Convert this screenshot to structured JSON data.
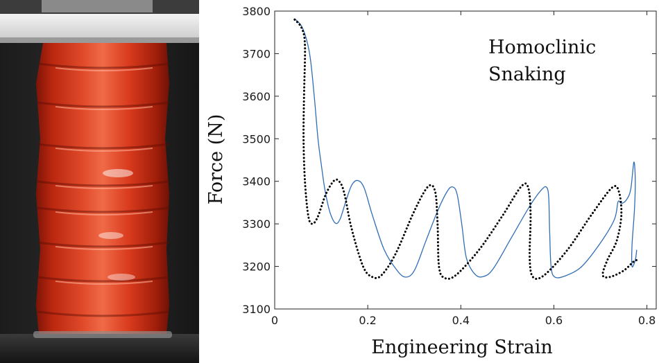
{
  "figure": {
    "photo_alt": "Red cylindrical shell with circumferential folds compressed between white and dark plates"
  },
  "chart_data": {
    "type": "line",
    "title": "",
    "xlabel": "Engineering Strain",
    "ylabel": "Force (N)",
    "xlim": [
      0,
      0.82
    ],
    "ylim": [
      3100,
      3800
    ],
    "xticks": [
      0,
      0.2,
      0.4,
      0.6,
      0.8
    ],
    "xtick_labels": [
      "0",
      "0.2",
      "0.4",
      "0.6",
      "0.8"
    ],
    "yticks": [
      3100,
      3200,
      3300,
      3400,
      3500,
      3600,
      3700,
      3800
    ],
    "ytick_labels": [
      "3100",
      "3200",
      "3300",
      "3400",
      "3500",
      "3600",
      "3700",
      "3800"
    ],
    "grid": false,
    "annotation": [
      "Homoclinic",
      "Snaking"
    ],
    "series": [
      {
        "name": "solid",
        "style": "solid",
        "color": "#2f6db5",
        "points": [
          [
            0.043,
            3782
          ],
          [
            0.06,
            3760
          ],
          [
            0.075,
            3700
          ],
          [
            0.085,
            3600
          ],
          [
            0.093,
            3500
          ],
          [
            0.1,
            3440
          ],
          [
            0.108,
            3380
          ],
          [
            0.118,
            3330
          ],
          [
            0.13,
            3302
          ],
          [
            0.14,
            3310
          ],
          [
            0.152,
            3350
          ],
          [
            0.165,
            3390
          ],
          [
            0.178,
            3402
          ],
          [
            0.192,
            3385
          ],
          [
            0.21,
            3320
          ],
          [
            0.235,
            3240
          ],
          [
            0.26,
            3195
          ],
          [
            0.28,
            3175
          ],
          [
            0.3,
            3190
          ],
          [
            0.325,
            3260
          ],
          [
            0.35,
            3330
          ],
          [
            0.37,
            3375
          ],
          [
            0.382,
            3387
          ],
          [
            0.392,
            3370
          ],
          [
            0.402,
            3300
          ],
          [
            0.412,
            3220
          ],
          [
            0.43,
            3182
          ],
          [
            0.448,
            3176
          ],
          [
            0.47,
            3195
          ],
          [
            0.51,
            3270
          ],
          [
            0.55,
            3345
          ],
          [
            0.575,
            3382
          ],
          [
            0.585,
            3385
          ],
          [
            0.589,
            3360
          ],
          [
            0.591,
            3280
          ],
          [
            0.594,
            3200
          ],
          [
            0.602,
            3175
          ],
          [
            0.625,
            3178
          ],
          [
            0.66,
            3200
          ],
          [
            0.7,
            3255
          ],
          [
            0.73,
            3310
          ],
          [
            0.738,
            3352
          ],
          [
            0.745,
            3348
          ],
          [
            0.755,
            3355
          ],
          [
            0.765,
            3380
          ],
          [
            0.772,
            3445
          ],
          [
            0.775,
            3400
          ],
          [
            0.773,
            3330
          ],
          [
            0.768,
            3250
          ],
          [
            0.768,
            3200
          ],
          [
            0.775,
            3215
          ],
          [
            0.778,
            3238
          ]
        ]
      },
      {
        "name": "dotted",
        "style": "dotted",
        "color": "#000000",
        "points": [
          [
            0.043,
            3780
          ],
          [
            0.058,
            3760
          ],
          [
            0.065,
            3720
          ],
          [
            0.063,
            3600
          ],
          [
            0.062,
            3500
          ],
          [
            0.065,
            3400
          ],
          [
            0.072,
            3320
          ],
          [
            0.08,
            3300
          ],
          [
            0.092,
            3315
          ],
          [
            0.11,
            3370
          ],
          [
            0.128,
            3402
          ],
          [
            0.14,
            3398
          ],
          [
            0.15,
            3370
          ],
          [
            0.165,
            3290
          ],
          [
            0.19,
            3200
          ],
          [
            0.21,
            3175
          ],
          [
            0.23,
            3180
          ],
          [
            0.26,
            3230
          ],
          [
            0.3,
            3330
          ],
          [
            0.33,
            3388
          ],
          [
            0.345,
            3375
          ],
          [
            0.35,
            3300
          ],
          [
            0.353,
            3200
          ],
          [
            0.365,
            3173
          ],
          [
            0.39,
            3180
          ],
          [
            0.44,
            3240
          ],
          [
            0.49,
            3320
          ],
          [
            0.53,
            3388
          ],
          [
            0.545,
            3385
          ],
          [
            0.55,
            3320
          ],
          [
            0.548,
            3220
          ],
          [
            0.555,
            3175
          ],
          [
            0.58,
            3180
          ],
          [
            0.63,
            3240
          ],
          [
            0.68,
            3320
          ],
          [
            0.725,
            3385
          ],
          [
            0.74,
            3375
          ],
          [
            0.745,
            3320
          ],
          [
            0.735,
            3260
          ],
          [
            0.715,
            3215
          ],
          [
            0.705,
            3180
          ],
          [
            0.72,
            3175
          ],
          [
            0.75,
            3190
          ],
          [
            0.77,
            3210
          ],
          [
            0.778,
            3215
          ]
        ]
      }
    ]
  }
}
